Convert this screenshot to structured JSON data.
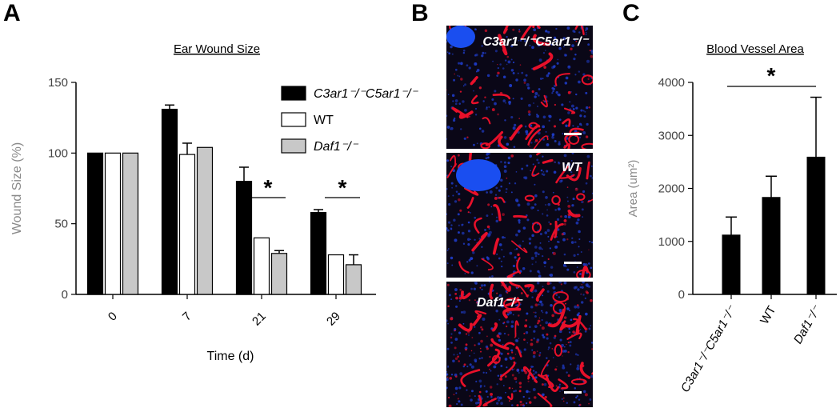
{
  "panels": {
    "a": {
      "letter": "A"
    },
    "b": {
      "letter": "B"
    },
    "c": {
      "letter": "C"
    }
  },
  "chart_data": [
    {
      "type": "bar",
      "title": "Ear Wound Size",
      "xlabel": "Time (d)",
      "ylabel": "Wound Size (%)",
      "categories": [
        "0",
        "7",
        "21",
        "29"
      ],
      "ylim": [
        0,
        150
      ],
      "yticks": [
        0,
        50,
        100,
        150
      ],
      "legend_position": "top-right",
      "series": [
        {
          "name": "C3ar1⁻/⁻C5ar1⁻/⁻",
          "color": "#000000",
          "values": [
            100,
            131,
            80,
            58
          ],
          "errors": [
            0,
            3,
            10,
            2
          ]
        },
        {
          "name": "WT",
          "color": "#ffffff",
          "values": [
            100,
            99,
            40,
            28
          ],
          "errors": [
            0,
            8,
            0,
            0
          ]
        },
        {
          "name": "Daf1⁻/⁻",
          "color": "#c8c8c8",
          "values": [
            100,
            104,
            29,
            21
          ],
          "errors": [
            0,
            0,
            2,
            7
          ]
        }
      ],
      "significance": [
        {
          "label": "*",
          "categories": "21"
        },
        {
          "label": "*",
          "categories": "29"
        }
      ]
    },
    {
      "type": "bar",
      "title": "Blood Vessel Area",
      "ylabel": "Area (um²)",
      "categories": [
        "C3ar1⁻/⁻C5ar1⁻/⁻",
        "WT",
        "Daf1⁻/⁻"
      ],
      "values": [
        1120,
        1830,
        2590
      ],
      "errors": [
        340,
        400,
        1130
      ],
      "color": "#000000",
      "ylim": [
        0,
        4000
      ],
      "yticks": [
        0,
        1000,
        2000,
        3000,
        4000
      ],
      "significance": [
        {
          "label": "*",
          "from": "C3ar1⁻/⁻C5ar1⁻/⁻",
          "to": "Daf1⁻/⁻"
        }
      ]
    }
  ],
  "micrographs": [
    {
      "label": "C3ar1⁻/⁻C5ar1⁻/⁻"
    },
    {
      "label": "WT"
    },
    {
      "label": "Daf1⁻/⁻"
    }
  ],
  "colors": {
    "vessel": "#e8102a",
    "nuclei": "#1f3cc8",
    "background": "#0a0717"
  }
}
